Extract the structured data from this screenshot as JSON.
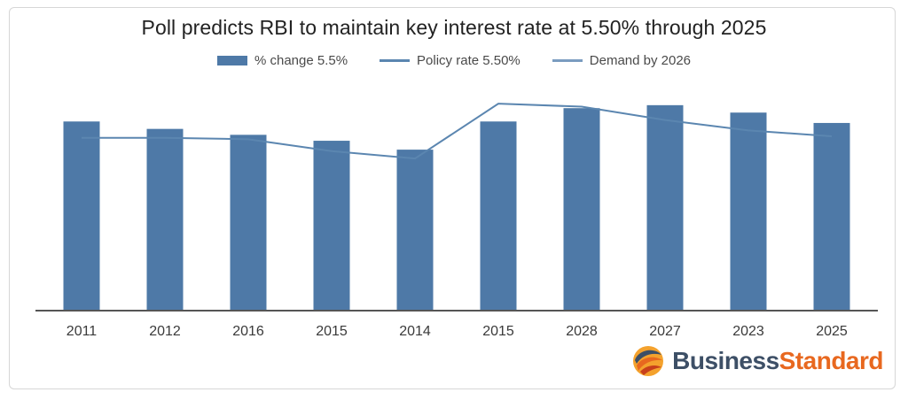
{
  "chart_data": {
    "type": "bar",
    "title": "Poll predicts RBI to maintain key interest rate at 5.50% through 2025",
    "categories": [
      "2011",
      "2012",
      "2016",
      "2015",
      "2014",
      "2015",
      "2028",
      "2027",
      "2023",
      "2025"
    ],
    "series": [
      {
        "name": "% change 5.5%",
        "kind": "bar",
        "color": "#4e79a7",
        "values": [
          6.35,
          6.1,
          5.9,
          5.7,
          5.4,
          6.35,
          6.8,
          6.9,
          6.65,
          6.3
        ]
      },
      {
        "name": "Policy rate 5.50%",
        "kind": "line",
        "color": "#5b86b0",
        "values": [
          5.8,
          5.8,
          5.75,
          5.35,
          5.1,
          6.95,
          6.85,
          6.4,
          6.05,
          5.85
        ]
      }
    ],
    "legend": [
      {
        "label": "% change 5.5%",
        "marker": "bar"
      },
      {
        "label": "Policy rate 5.50%",
        "marker": "line"
      },
      {
        "label": "Demand by 2026",
        "marker": "line"
      }
    ],
    "xlabel": "",
    "ylabel": "",
    "ylim": [
      0,
      8
    ],
    "grid": false,
    "legend_position": "top"
  },
  "colors": {
    "bar": "#4e79a7",
    "line": "#5b86b0",
    "axis": "#555555",
    "brand_dark": "#3d4f66",
    "brand_orange": "#e8681f"
  },
  "brand": {
    "word1": "Business",
    "word2": "Standard",
    "icon": "business-standard-logo-icon"
  }
}
